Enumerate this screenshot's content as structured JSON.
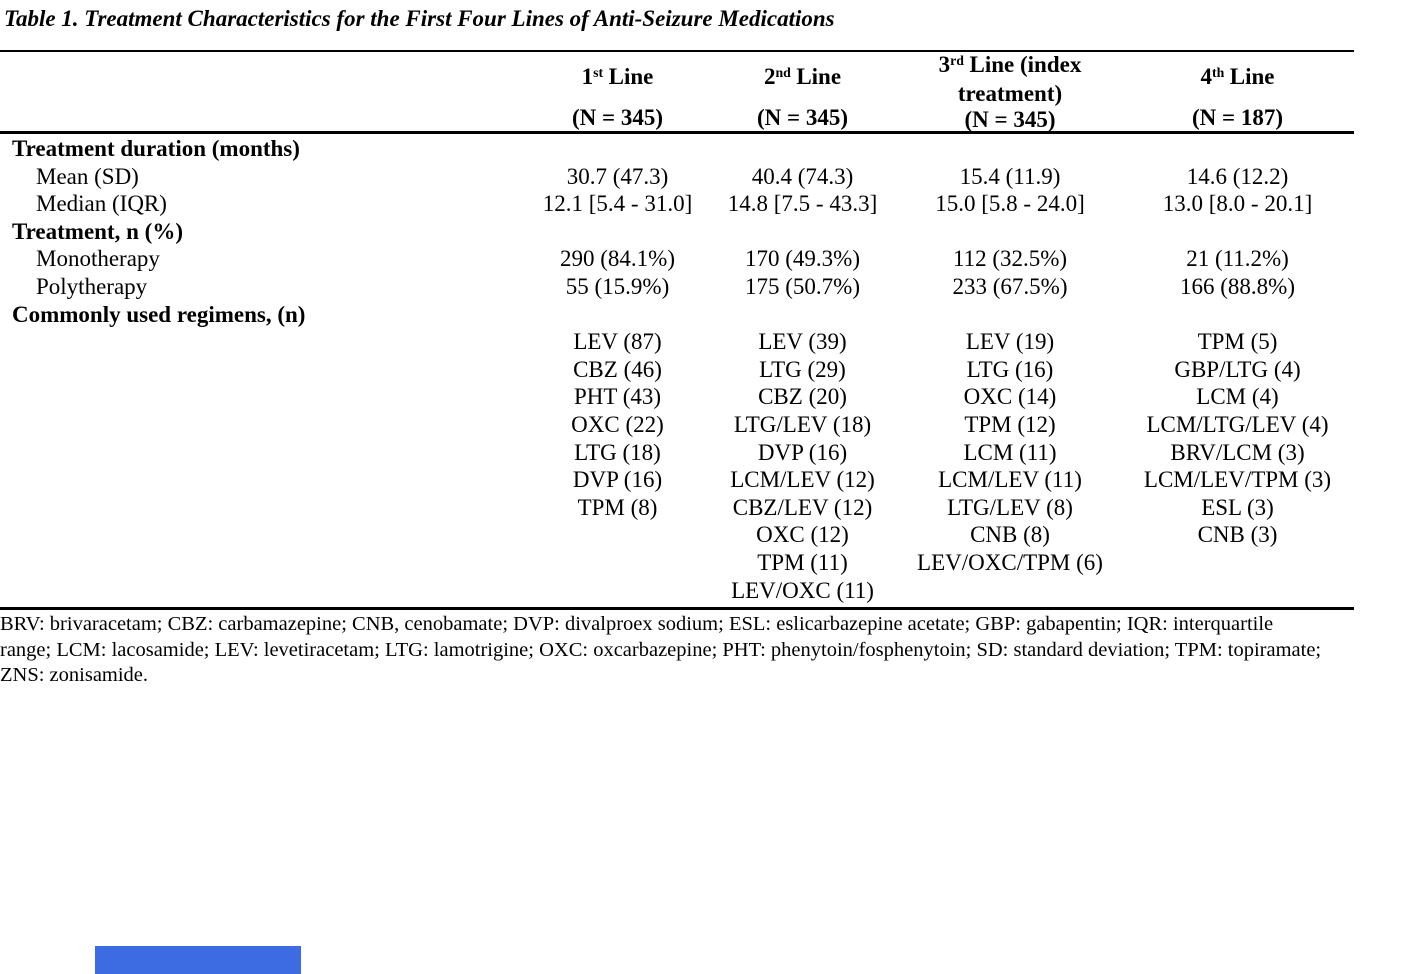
{
  "page": {
    "background": "#ffffff",
    "text_color": "#000000"
  },
  "title": "Table 1. Treatment Characteristics for the First Four Lines of Anti-Seizure Medications",
  "table": {
    "columns": [
      {
        "num": "1",
        "sup": "st",
        "rest": "Line",
        "n": "(N = 345)"
      },
      {
        "num": "2",
        "sup": "nd",
        "rest": "Line",
        "n": "(N = 345)"
      },
      {
        "num": "3",
        "sup": "rd",
        "rest": "Line (index",
        "rest2": "treatment)",
        "n": "(N = 345)"
      },
      {
        "num": "4",
        "sup": "th",
        "rest": "Line",
        "n": "(N = 187)"
      }
    ],
    "rows": [
      {
        "label": "Treatment duration (months)",
        "style": "group",
        "values": [
          "",
          "",
          "",
          ""
        ]
      },
      {
        "label": "Mean (SD)",
        "style": "sub",
        "values": [
          "30.7 (47.3)",
          "40.4 (74.3)",
          "15.4 (11.9)",
          "14.6 (12.2)"
        ]
      },
      {
        "label": "Median (IQR)",
        "style": "sub",
        "values": [
          "12.1 [5.4 - 31.0]",
          "14.8 [7.5 - 43.3]",
          "15.0 [5.8 - 24.0]",
          "13.0 [8.0 - 20.1]"
        ]
      },
      {
        "label": "Treatment, n (%)",
        "style": "group",
        "values": [
          "",
          "",
          "",
          ""
        ]
      },
      {
        "label": "Monotherapy",
        "style": "sub",
        "values": [
          "290 (84.1%)",
          "170 (49.3%)",
          "112 (32.5%)",
          "21 (11.2%)"
        ]
      },
      {
        "label": "Polytherapy",
        "style": "sub",
        "values": [
          "55 (15.9%)",
          "175 (50.7%)",
          "233 (67.5%)",
          "166 (88.8%)"
        ]
      },
      {
        "label": "Commonly used regimens, (n)",
        "style": "group",
        "values": [
          "",
          "",
          "",
          ""
        ]
      },
      {
        "label": "",
        "style": "sub",
        "values": [
          "LEV (87)",
          "LEV (39)",
          "LEV (19)",
          "TPM (5)"
        ]
      },
      {
        "label": "",
        "style": "sub",
        "values": [
          "CBZ (46)",
          "LTG (29)",
          "LTG (16)",
          "GBP/LTG (4)"
        ]
      },
      {
        "label": "",
        "style": "sub",
        "values": [
          "PHT (43)",
          "CBZ (20)",
          "OXC (14)",
          "LCM (4)"
        ]
      },
      {
        "label": "",
        "style": "sub",
        "values": [
          "OXC (22)",
          "LTG/LEV (18)",
          "TPM (12)",
          "LCM/LTG/LEV (4)"
        ]
      },
      {
        "label": "",
        "style": "sub",
        "values": [
          "LTG (18)",
          "DVP (16)",
          "LCM (11)",
          "BRV/LCM (3)"
        ]
      },
      {
        "label": "",
        "style": "sub",
        "values": [
          "DVP (16)",
          "LCM/LEV (12)",
          "LCM/LEV (11)",
          "LCM/LEV/TPM (3)"
        ]
      },
      {
        "label": "",
        "style": "sub",
        "values": [
          "TPM (8)",
          "CBZ/LEV (12)",
          "LTG/LEV (8)",
          "ESL (3)"
        ]
      },
      {
        "label": "",
        "style": "sub",
        "values": [
          "",
          "OXC (12)",
          "CNB (8)",
          "CNB (3)"
        ]
      },
      {
        "label": "",
        "style": "sub",
        "values": [
          "",
          "TPM (11)",
          "LEV/OXC/TPM (6)",
          ""
        ]
      },
      {
        "label": "",
        "style": "sub",
        "values": [
          "",
          "LEV/OXC (11)",
          "",
          ""
        ]
      }
    ]
  },
  "footnote_lines": [
    "BRV: brivaracetam; CBZ: carbamazepine; CNB, cenobamate; DVP: divalproex sodium; ESL: eslicarbazepine acetate; GBP: gabapentin; IQR: interquartile",
    "range; LCM: lacosamide; LEV: levetiracetam; LTG: lamotrigine; OXC: oxcarbazepine; PHT: phenytoin/fosphenytoin; SD: standard deviation; TPM: topiramate;",
    "ZNS: zonisamide."
  ],
  "selection_bar": {
    "color": "#3d6ce2"
  }
}
